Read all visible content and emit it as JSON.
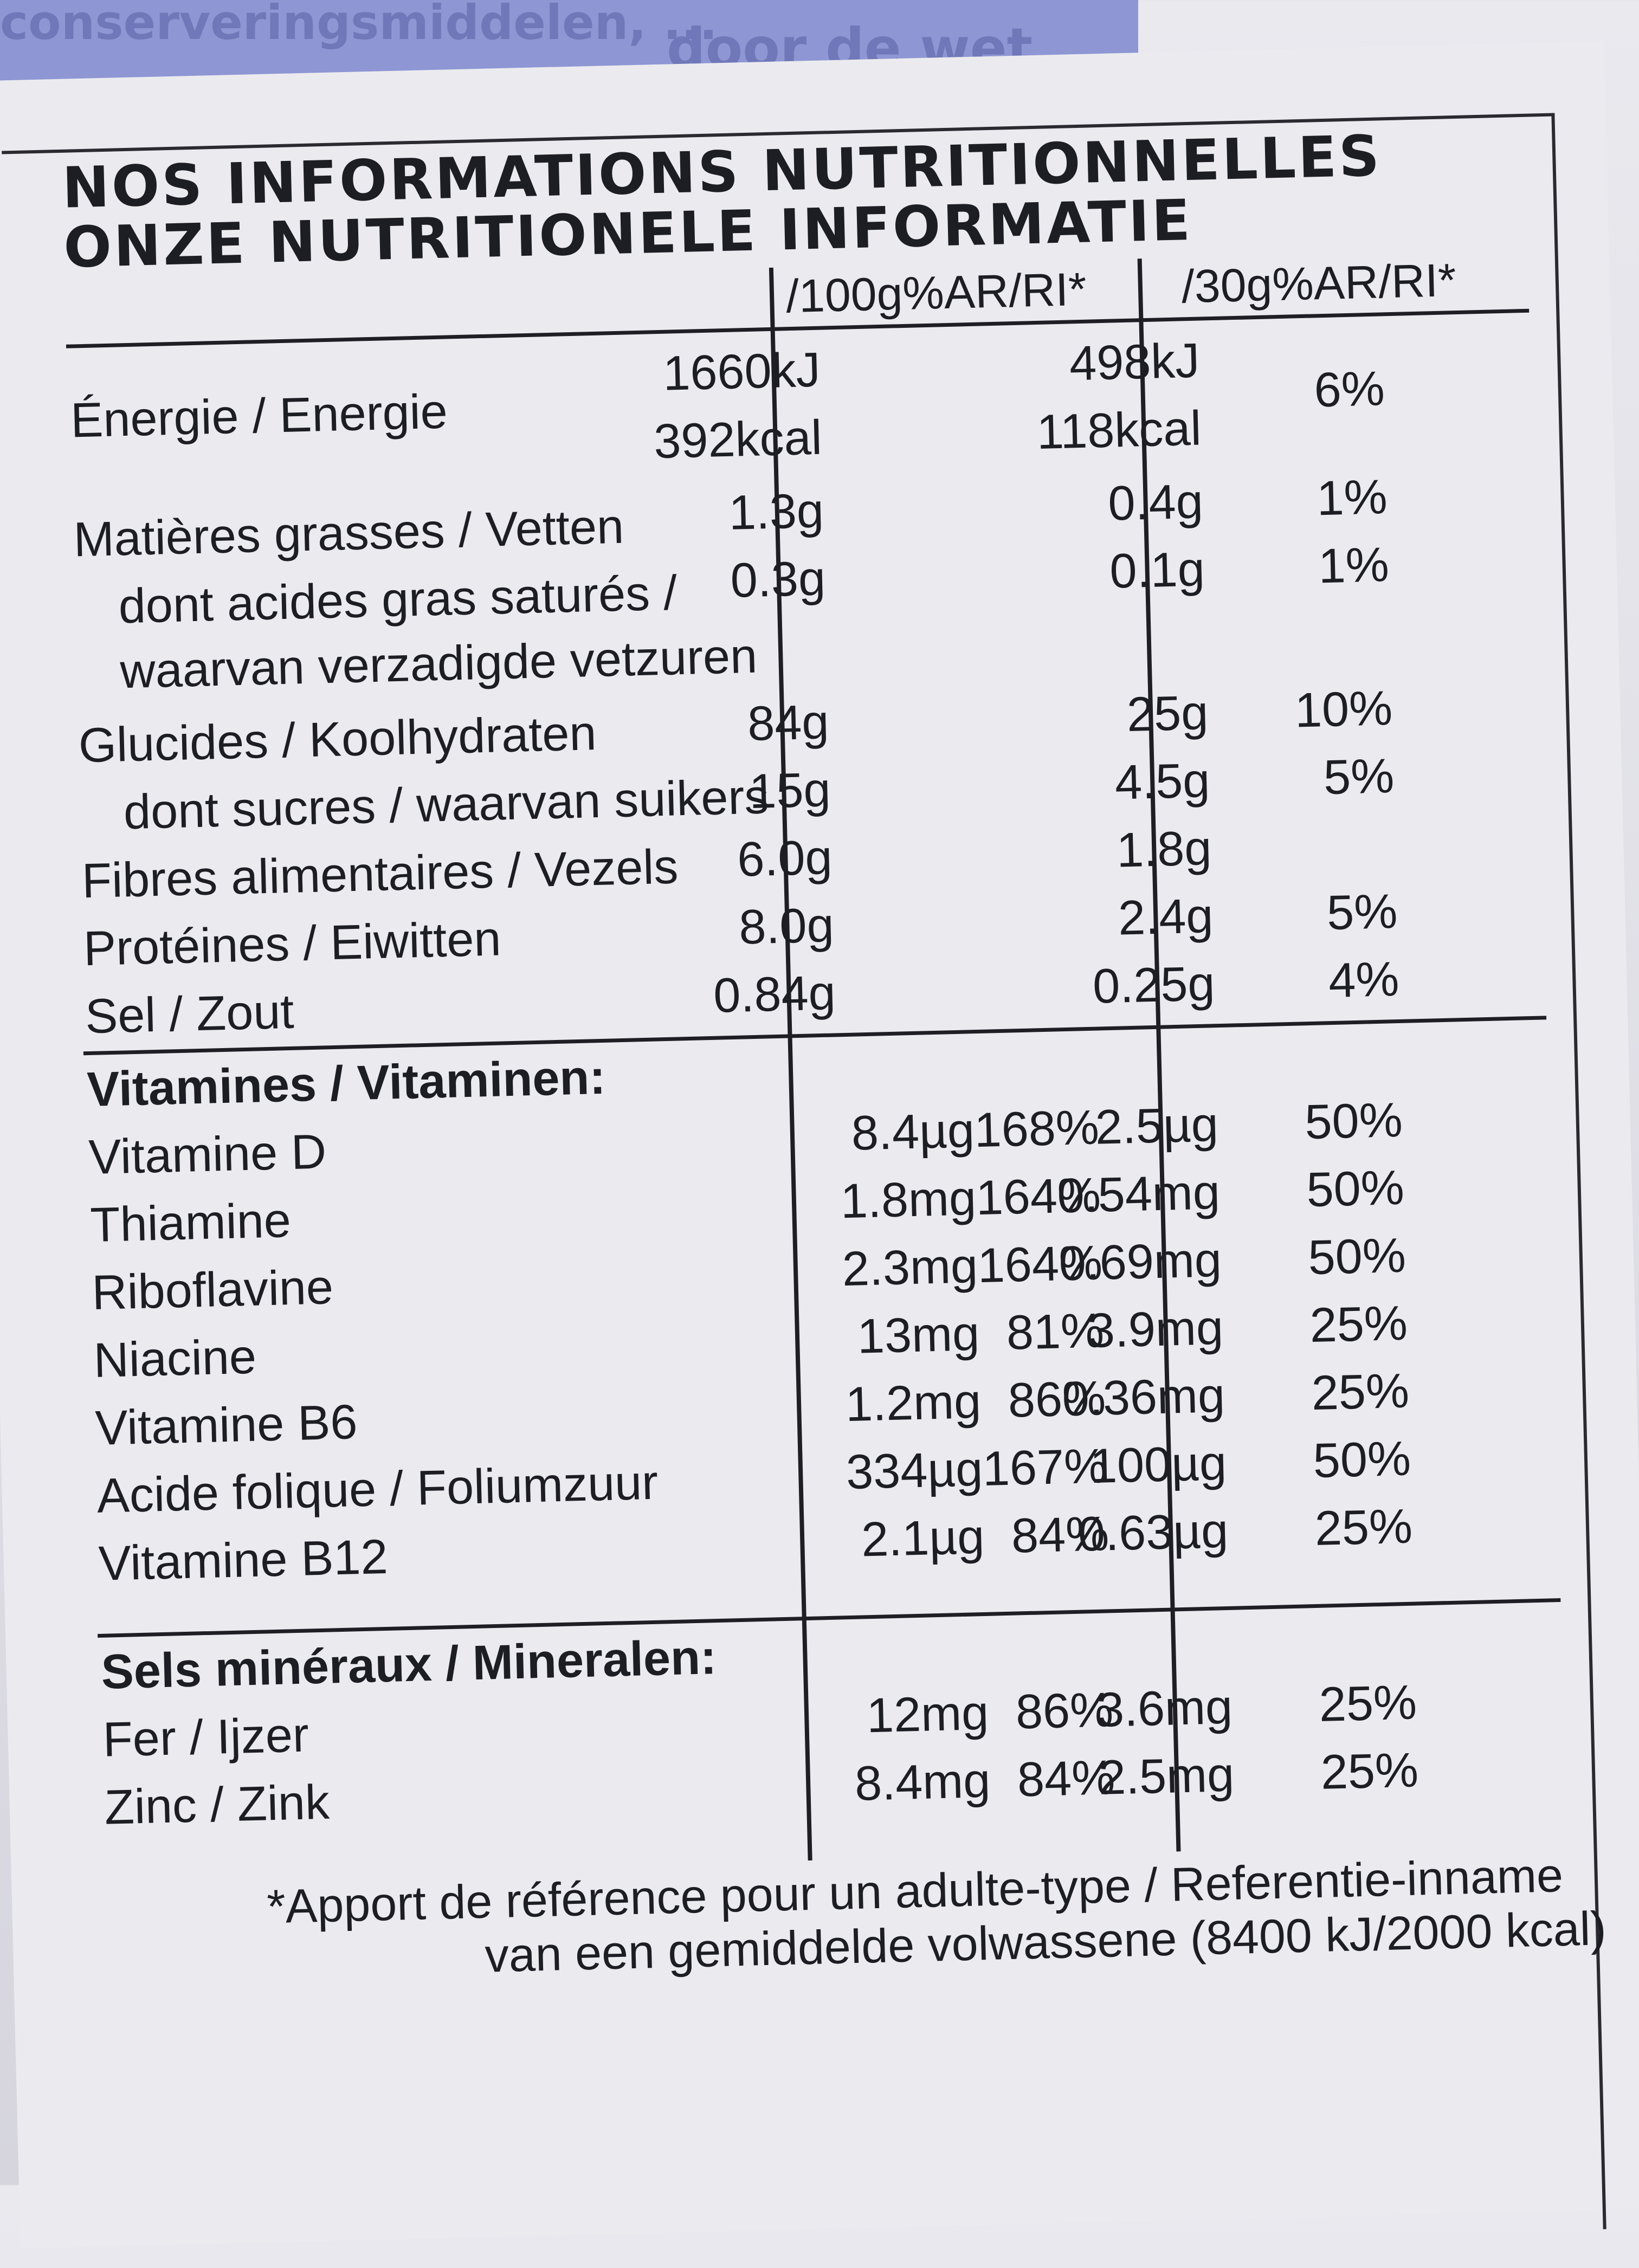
{
  "top_band": {
    "text_left": "conserveringsmiddelen, ...",
    "text_right": "door de wet."
  },
  "heading": {
    "line1": "NOS INFORMATIONS NUTRITIONNELLES",
    "line2": "ONZE NUTRITIONELE INFORMATIE"
  },
  "columns": {
    "per100": "/100g%AR/RI*",
    "per30": "/30g%AR/RI*"
  },
  "rows": [
    {
      "label": "Énergie / Energie",
      "v100": "1660kJ",
      "v100b": "392kcal",
      "v30": "498kJ",
      "v30b": "118kcal",
      "p30": "6%"
    },
    {
      "label": "Matières grasses / Vetten",
      "v100": "1.3g",
      "v30": "0.4g",
      "p30": "1%"
    },
    {
      "label": "dont acides gras saturés /",
      "label2": "waarvan verzadigde vetzuren",
      "v100": "0.3g",
      "v30": "0.1g",
      "p30": "1%"
    },
    {
      "label": "Glucides / Koolhydraten",
      "v100": "84g",
      "v30": "25g",
      "p30": "10%"
    },
    {
      "label": "dont sucres / waarvan suikers",
      "v100": "15g",
      "v30": "4.5g",
      "p30": "5%"
    },
    {
      "label": "Fibres alimentaires / Vezels",
      "v100": "6.0g",
      "v30": "1.8g",
      "p30": ""
    },
    {
      "label": "Protéines / Eiwitten",
      "v100": "8.0g",
      "v30": "2.4g",
      "p30": "5%"
    },
    {
      "label": "Sel / Zout",
      "v100": "0.84g",
      "v30": "0.25g",
      "p30": "4%"
    }
  ],
  "vitamins_title": "Vitamines / Vitaminen:",
  "vitamins": [
    {
      "label": "Vitamine D",
      "v100": "8.4µg",
      "p100": "168%",
      "v30": "2.5µg",
      "p30": "50%"
    },
    {
      "label": "Thiamine",
      "v100": "1.8mg",
      "p100": "164%",
      "v30": "0.54mg",
      "p30": "50%"
    },
    {
      "label": "Riboflavine",
      "v100": "2.3mg",
      "p100": "164%",
      "v30": "0.69mg",
      "p30": "50%"
    },
    {
      "label": "Niacine",
      "v100": "13mg",
      "p100": "81%",
      "v30": "3.9mg",
      "p30": "25%"
    },
    {
      "label": "Vitamine B6",
      "v100": "1.2mg",
      "p100": "86%",
      "v30": "0.36mg",
      "p30": "25%"
    },
    {
      "label": "Acide folique / Foliumzuur",
      "v100": "334µg",
      "p100": "167%",
      "v30": "100µg",
      "p30": "50%"
    },
    {
      "label": "Vitamine B12",
      "v100": "2.1µg",
      "p100": "84%",
      "v30": "0.63µg",
      "p30": "25%"
    }
  ],
  "minerals_title": "Sels minéraux / Mineralen:",
  "minerals": [
    {
      "label": "Fer / Ijzer",
      "v100": "12mg",
      "p100": "86%",
      "v30": "3.6mg",
      "p30": "25%"
    },
    {
      "label": "Zinc / Zink",
      "v100": "8.4mg",
      "p100": "84%",
      "v30": "2.5mg",
      "p30": "25%"
    }
  ],
  "footnote": {
    "line1": "*Apport de référence pour un adulte-type / Referentie-inname",
    "line2": "van een gemiddelde volwassene (8400 kJ/2000 kcal)"
  }
}
